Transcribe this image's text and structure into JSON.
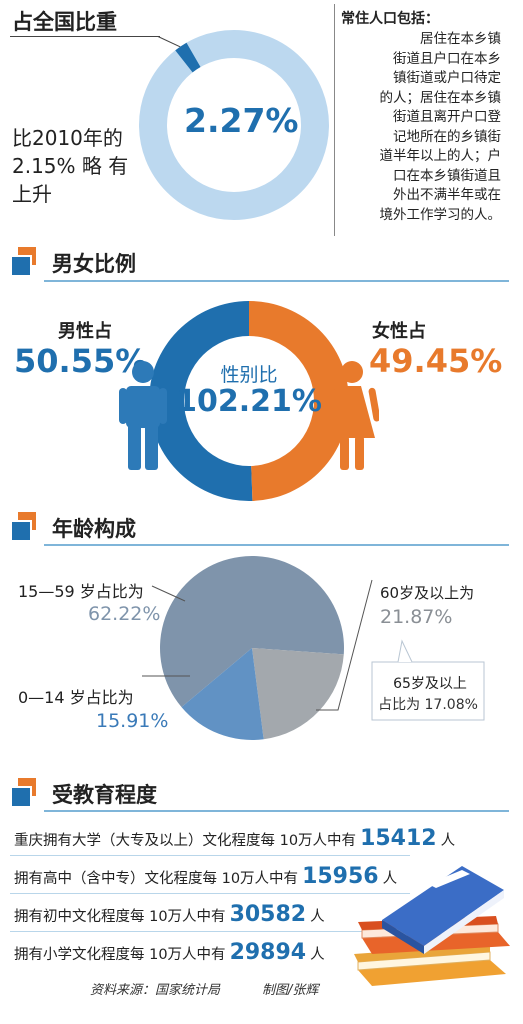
{
  "share": {
    "title": "占全国比重",
    "value": "2.27%",
    "value_num": 2.27,
    "compare_line1": "比2010年的",
    "compare_line2": "2.15% 略 有",
    "compare_line3": "上升",
    "note_title": "常住人口包括：",
    "note_lines": [
      "居住在本乡镇",
      "街道且户口在本乡",
      "镇街道或户口待定",
      "的人；居住在本乡镇",
      "街道且离开户口登",
      "记地所在的乡镇街",
      "道半年以上的人；户",
      "口在本乡镇街道且",
      "外出不满半年或在",
      "境外工作学习的人。"
    ]
  },
  "gender": {
    "title": "男女比例",
    "male_label": "男性占",
    "male_value": "50.55%",
    "female_label": "女性占",
    "female_value": "49.45%",
    "ratio_label": "性别比",
    "ratio_value": "102.21%"
  },
  "age": {
    "title": "年龄构成",
    "a_label": "15—59 岁占比为",
    "a_value": "62.22%",
    "b_label": "0—14 岁占比为",
    "b_value": "15.91%",
    "c_label": "60岁及以上为",
    "c_value": "21.87%",
    "d_line1": "65岁及以上",
    "d_line2": "占比为 17.08%"
  },
  "education": {
    "title": "受教育程度",
    "rows": [
      {
        "pre": "重庆拥有大学（大专及以上）文化程度每 10万人中有",
        "num": "15412",
        "post": "人"
      },
      {
        "pre": "拥有高中（含中专）文化程度每 10万人中有",
        "num": "15956",
        "post": "人"
      },
      {
        "pre": "拥有初中文化程度每 10万人中有",
        "num": "30582",
        "post": "人"
      },
      {
        "pre": "拥有小学文化程度每 10万人中有",
        "num": "29894",
        "post": "人"
      }
    ]
  },
  "footer": {
    "source": "资料来源：国家统计局",
    "credit": "制图/张辉"
  },
  "colors": {
    "blue": "#1f6fae",
    "orange": "#e87a2c",
    "light_blue": "#bcd8ef",
    "slate": "#7f94ab",
    "mid_blue": "#6192c4",
    "grey": "#a3a8ad"
  },
  "chart_data": [
    {
      "type": "pie",
      "labels": [
        "占全国比重"
      ],
      "values": [
        2.27
      ]
    },
    {
      "type": "pie",
      "labels": [
        "男性占",
        "女性占"
      ],
      "values": [
        50.55,
        49.45
      ]
    },
    {
      "type": "pie",
      "labels": [
        "15—59 岁占比为",
        "0—14 岁占比为",
        "60岁及以上为"
      ],
      "values": [
        62.22,
        15.91,
        21.87
      ]
    },
    {
      "type": "bar",
      "categories": [
        "大学（大专及以上）",
        "高中（含中专）",
        "初中",
        "小学"
      ],
      "values": [
        15412,
        15956,
        30582,
        29894
      ]
    }
  ]
}
